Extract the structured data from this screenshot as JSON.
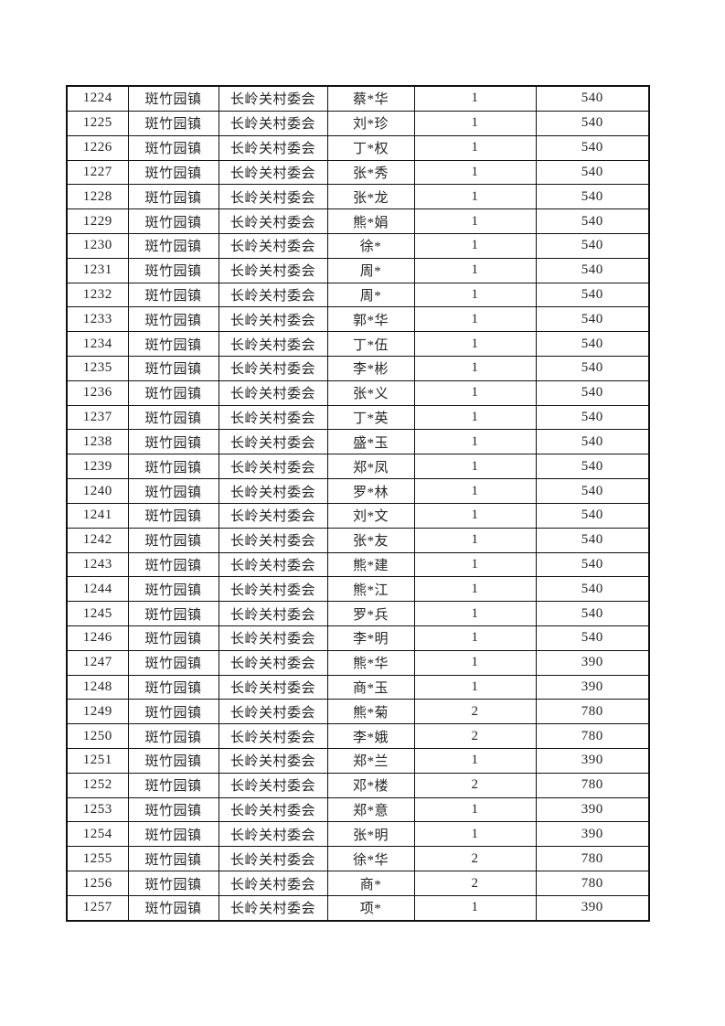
{
  "page": {
    "background_color": "#ffffff",
    "border_color": "#111111",
    "text_color": "#262626"
  },
  "table": {
    "rows": [
      [
        "1224",
        "斑竹园镇",
        "长岭关村委会",
        "蔡*华",
        "1",
        "540"
      ],
      [
        "1225",
        "斑竹园镇",
        "长岭关村委会",
        "刘*珍",
        "1",
        "540"
      ],
      [
        "1226",
        "斑竹园镇",
        "长岭关村委会",
        "丁*权",
        "1",
        "540"
      ],
      [
        "1227",
        "斑竹园镇",
        "长岭关村委会",
        "张*秀",
        "1",
        "540"
      ],
      [
        "1228",
        "斑竹园镇",
        "长岭关村委会",
        "张*龙",
        "1",
        "540"
      ],
      [
        "1229",
        "斑竹园镇",
        "长岭关村委会",
        "熊*娟",
        "1",
        "540"
      ],
      [
        "1230",
        "斑竹园镇",
        "长岭关村委会",
        "徐*",
        "1",
        "540"
      ],
      [
        "1231",
        "斑竹园镇",
        "长岭关村委会",
        "周*",
        "1",
        "540"
      ],
      [
        "1232",
        "斑竹园镇",
        "长岭关村委会",
        "周*",
        "1",
        "540"
      ],
      [
        "1233",
        "斑竹园镇",
        "长岭关村委会",
        "郭*华",
        "1",
        "540"
      ],
      [
        "1234",
        "斑竹园镇",
        "长岭关村委会",
        "丁*伍",
        "1",
        "540"
      ],
      [
        "1235",
        "斑竹园镇",
        "长岭关村委会",
        "李*彬",
        "1",
        "540"
      ],
      [
        "1236",
        "斑竹园镇",
        "长岭关村委会",
        "张*义",
        "1",
        "540"
      ],
      [
        "1237",
        "斑竹园镇",
        "长岭关村委会",
        "丁*英",
        "1",
        "540"
      ],
      [
        "1238",
        "斑竹园镇",
        "长岭关村委会",
        "盛*玉",
        "1",
        "540"
      ],
      [
        "1239",
        "斑竹园镇",
        "长岭关村委会",
        "郑*凤",
        "1",
        "540"
      ],
      [
        "1240",
        "斑竹园镇",
        "长岭关村委会",
        "罗*林",
        "1",
        "540"
      ],
      [
        "1241",
        "斑竹园镇",
        "长岭关村委会",
        "刘*文",
        "1",
        "540"
      ],
      [
        "1242",
        "斑竹园镇",
        "长岭关村委会",
        "张*友",
        "1",
        "540"
      ],
      [
        "1243",
        "斑竹园镇",
        "长岭关村委会",
        "熊*建",
        "1",
        "540"
      ],
      [
        "1244",
        "斑竹园镇",
        "长岭关村委会",
        "熊*江",
        "1",
        "540"
      ],
      [
        "1245",
        "斑竹园镇",
        "长岭关村委会",
        "罗*兵",
        "1",
        "540"
      ],
      [
        "1246",
        "斑竹园镇",
        "长岭关村委会",
        "李*明",
        "1",
        "540"
      ],
      [
        "1247",
        "斑竹园镇",
        "长岭关村委会",
        "熊*华",
        "1",
        "390"
      ],
      [
        "1248",
        "斑竹园镇",
        "长岭关村委会",
        "商*玉",
        "1",
        "390"
      ],
      [
        "1249",
        "斑竹园镇",
        "长岭关村委会",
        "熊*菊",
        "2",
        "780"
      ],
      [
        "1250",
        "斑竹园镇",
        "长岭关村委会",
        "李*娥",
        "2",
        "780"
      ],
      [
        "1251",
        "斑竹园镇",
        "长岭关村委会",
        "郑*兰",
        "1",
        "390"
      ],
      [
        "1252",
        "斑竹园镇",
        "长岭关村委会",
        "邓*楼",
        "2",
        "780"
      ],
      [
        "1253",
        "斑竹园镇",
        "长岭关村委会",
        "郑*意",
        "1",
        "390"
      ],
      [
        "1254",
        "斑竹园镇",
        "长岭关村委会",
        "张*明",
        "1",
        "390"
      ],
      [
        "1255",
        "斑竹园镇",
        "长岭关村委会",
        "徐*华",
        "2",
        "780"
      ],
      [
        "1256",
        "斑竹园镇",
        "长岭关村委会",
        "商*",
        "2",
        "780"
      ],
      [
        "1257",
        "斑竹园镇",
        "长岭关村委会",
        "项*",
        "1",
        "390"
      ]
    ]
  }
}
